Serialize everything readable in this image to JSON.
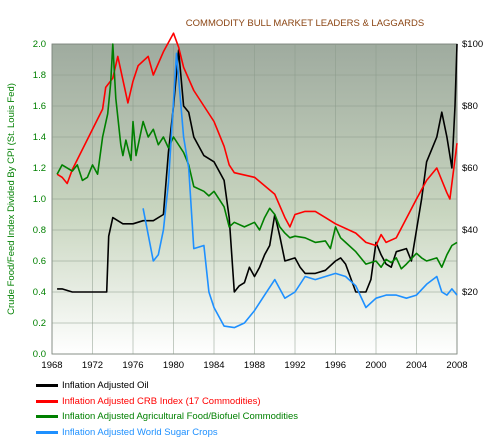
{
  "chart_data": {
    "type": "line",
    "title": "COMMODITY BULL MARKET LEADERS & LAGGARDS",
    "ylabel": "Crude Food/Feed Index Divided By CPI (St. Louis Fed)",
    "xlabel": "",
    "xlim": [
      1968,
      2008
    ],
    "ylim": [
      0.0,
      2.0
    ],
    "y2lim": [
      0,
      100
    ],
    "x_ticks": [
      "1968",
      "1972",
      "1976",
      "1980",
      "1984",
      "1988",
      "1992",
      "1996",
      "2000",
      "2004",
      "2008"
    ],
    "y_ticks": [
      "0.0",
      "0.2",
      "0.4",
      "0.6",
      "0.8",
      "1.0",
      "1.2",
      "1.4",
      "1.6",
      "1.8",
      "2.0"
    ],
    "y2_ticks": [
      "$20",
      "$40",
      "$60",
      "$80",
      "$100"
    ],
    "grid": true,
    "legend_position": "bottom",
    "series": [
      {
        "name": "Inflation Adjusted Oil",
        "color": "#000000",
        "axis": "right",
        "points": [
          [
            1968.5,
            21
          ],
          [
            1969,
            21
          ],
          [
            1970,
            20
          ],
          [
            1971,
            20
          ],
          [
            1972,
            20
          ],
          [
            1973,
            20
          ],
          [
            1973.4,
            20
          ],
          [
            1973.6,
            38
          ],
          [
            1974,
            44
          ],
          [
            1975,
            42
          ],
          [
            1976,
            42
          ],
          [
            1977,
            43
          ],
          [
            1978,
            43
          ],
          [
            1979,
            45
          ],
          [
            1979.5,
            65
          ],
          [
            1980,
            80
          ],
          [
            1980.5,
            98
          ],
          [
            1981,
            80
          ],
          [
            1981.5,
            78
          ],
          [
            1982,
            70
          ],
          [
            1983,
            64
          ],
          [
            1984,
            62
          ],
          [
            1985,
            56
          ],
          [
            1985.5,
            44
          ],
          [
            1986,
            20
          ],
          [
            1986.5,
            22
          ],
          [
            1987,
            23
          ],
          [
            1987.5,
            28
          ],
          [
            1988,
            25
          ],
          [
            1988.5,
            28
          ],
          [
            1989,
            32
          ],
          [
            1989.5,
            35
          ],
          [
            1990,
            45
          ],
          [
            1990.5,
            38
          ],
          [
            1991,
            30
          ],
          [
            1992,
            31
          ],
          [
            1992.5,
            28
          ],
          [
            1993,
            26
          ],
          [
            1994,
            26
          ],
          [
            1995,
            27
          ],
          [
            1996,
            30
          ],
          [
            1996.5,
            31
          ],
          [
            1997,
            29
          ],
          [
            1998,
            20
          ],
          [
            1999,
            20
          ],
          [
            1999.5,
            24
          ],
          [
            2000,
            36
          ],
          [
            2000.5,
            32
          ],
          [
            2001,
            29
          ],
          [
            2001.5,
            28
          ],
          [
            2002,
            33
          ],
          [
            2003,
            34
          ],
          [
            2003.5,
            30
          ],
          [
            2004,
            40
          ],
          [
            2004.5,
            50
          ],
          [
            2005,
            62
          ],
          [
            2005.5,
            66
          ],
          [
            2006,
            70
          ],
          [
            2006.5,
            78
          ],
          [
            2007,
            70
          ],
          [
            2007.5,
            60
          ],
          [
            2007.8,
            80
          ],
          [
            2008,
            100
          ]
        ]
      },
      {
        "name": "Inflation Adjusted CRB Index (17 Commodities)",
        "color": "#ff0000",
        "axis": "left",
        "points": [
          [
            1968.5,
            1.16
          ],
          [
            1969,
            1.14
          ],
          [
            1969.5,
            1.1
          ],
          [
            1970,
            1.19
          ],
          [
            1973,
            1.58
          ],
          [
            1973.3,
            1.72
          ],
          [
            1974,
            1.78
          ],
          [
            1974.5,
            1.92
          ],
          [
            1975.5,
            1.62
          ],
          [
            1976,
            1.76
          ],
          [
            1976.5,
            1.86
          ],
          [
            1977.5,
            1.92
          ],
          [
            1978,
            1.8
          ],
          [
            1979,
            1.95
          ],
          [
            1980,
            2.07
          ],
          [
            1980.5,
            1.98
          ],
          [
            1981,
            1.85
          ],
          [
            1982,
            1.7
          ],
          [
            1983,
            1.6
          ],
          [
            1984,
            1.5
          ],
          [
            1985,
            1.34
          ],
          [
            1985.5,
            1.22
          ],
          [
            1986,
            1.17
          ],
          [
            1988,
            1.14
          ],
          [
            1990,
            1.03
          ],
          [
            1991,
            0.88
          ],
          [
            1991.5,
            0.82
          ],
          [
            1992,
            0.9
          ],
          [
            1993,
            0.92
          ],
          [
            1994,
            0.92
          ],
          [
            1995,
            0.88
          ],
          [
            1996,
            0.84
          ],
          [
            1998,
            0.78
          ],
          [
            1999,
            0.72
          ],
          [
            2000,
            0.7
          ],
          [
            2000.5,
            0.77
          ],
          [
            2001,
            0.72
          ],
          [
            2002,
            0.75
          ],
          [
            2004,
            1.0
          ],
          [
            2005,
            1.12
          ],
          [
            2006,
            1.2
          ],
          [
            2007,
            1.04
          ],
          [
            2007.3,
            1.0
          ],
          [
            2008,
            1.36
          ]
        ]
      },
      {
        "name": "Inflation Adjusted Agricultural Food/Biofuel Commodities",
        "color": "#008000",
        "axis": "left",
        "points": [
          [
            1968.5,
            1.16
          ],
          [
            1969,
            1.22
          ],
          [
            1970,
            1.18
          ],
          [
            1970.5,
            1.22
          ],
          [
            1971,
            1.12
          ],
          [
            1971.5,
            1.14
          ],
          [
            1972,
            1.22
          ],
          [
            1972.5,
            1.16
          ],
          [
            1973,
            1.4
          ],
          [
            1973.5,
            1.55
          ],
          [
            1973.8,
            1.75
          ],
          [
            1974,
            2.0
          ],
          [
            1974.3,
            1.65
          ],
          [
            1974.8,
            1.35
          ],
          [
            1975,
            1.28
          ],
          [
            1975.3,
            1.38
          ],
          [
            1975.8,
            1.25
          ],
          [
            1976,
            1.5
          ],
          [
            1976.3,
            1.28
          ],
          [
            1977,
            1.5
          ],
          [
            1977.5,
            1.4
          ],
          [
            1978,
            1.45
          ],
          [
            1978.5,
            1.35
          ],
          [
            1979,
            1.4
          ],
          [
            1979.5,
            1.33
          ],
          [
            1980,
            1.4
          ],
          [
            1981,
            1.3
          ],
          [
            1981.5,
            1.22
          ],
          [
            1982,
            1.08
          ],
          [
            1983,
            1.05
          ],
          [
            1983.5,
            1.02
          ],
          [
            1984,
            1.05
          ],
          [
            1985,
            0.95
          ],
          [
            1985.5,
            0.82
          ],
          [
            1986,
            0.85
          ],
          [
            1987,
            0.82
          ],
          [
            1988,
            0.85
          ],
          [
            1988.5,
            0.8
          ],
          [
            1989,
            0.88
          ],
          [
            1989.5,
            0.94
          ],
          [
            1990,
            0.9
          ],
          [
            1990.5,
            0.82
          ],
          [
            1991,
            0.78
          ],
          [
            1991.5,
            0.75
          ],
          [
            1992,
            0.76
          ],
          [
            1993,
            0.75
          ],
          [
            1994,
            0.72
          ],
          [
            1995,
            0.73
          ],
          [
            1995.5,
            0.68
          ],
          [
            1996,
            0.82
          ],
          [
            1996.5,
            0.75
          ],
          [
            1997,
            0.72
          ],
          [
            1998,
            0.66
          ],
          [
            1998.5,
            0.62
          ],
          [
            1999,
            0.58
          ],
          [
            2000,
            0.6
          ],
          [
            2000.5,
            0.56
          ],
          [
            2001,
            0.61
          ],
          [
            2001.5,
            0.59
          ],
          [
            2002,
            0.62
          ],
          [
            2002.5,
            0.55
          ],
          [
            2003,
            0.58
          ],
          [
            2004,
            0.65
          ],
          [
            2004.5,
            0.62
          ],
          [
            2005,
            0.6
          ],
          [
            2006,
            0.62
          ],
          [
            2006.5,
            0.56
          ],
          [
            2007,
            0.64
          ],
          [
            2007.5,
            0.7
          ],
          [
            2008,
            0.72
          ]
        ]
      },
      {
        "name": "Inflation Adjusted World Sugar Crops",
        "color": "#1e90ff",
        "axis": "left",
        "points": [
          [
            1977,
            0.94
          ],
          [
            1978,
            0.6
          ],
          [
            1978.5,
            0.64
          ],
          [
            1979,
            0.8
          ],
          [
            1979.5,
            1.1
          ],
          [
            1980.3,
            1.94
          ],
          [
            1980.5,
            1.78
          ],
          [
            1981,
            1.4
          ],
          [
            1981.5,
            1.2
          ],
          [
            1982,
            0.68
          ],
          [
            1983,
            0.7
          ],
          [
            1983.5,
            0.4
          ],
          [
            1984,
            0.3
          ],
          [
            1985,
            0.18
          ],
          [
            1986,
            0.17
          ],
          [
            1987,
            0.2
          ],
          [
            1988,
            0.28
          ],
          [
            1989,
            0.38
          ],
          [
            1990,
            0.48
          ],
          [
            1991,
            0.36
          ],
          [
            1992,
            0.4
          ],
          [
            1993,
            0.5
          ],
          [
            1994,
            0.48
          ],
          [
            1995,
            0.5
          ],
          [
            1996,
            0.52
          ],
          [
            1997,
            0.5
          ],
          [
            1998,
            0.44
          ],
          [
            1999,
            0.3
          ],
          [
            2000,
            0.36
          ],
          [
            2001,
            0.38
          ],
          [
            2002,
            0.38
          ],
          [
            2003,
            0.36
          ],
          [
            2004,
            0.38
          ],
          [
            2005,
            0.45
          ],
          [
            2006,
            0.5
          ],
          [
            2006.5,
            0.4
          ],
          [
            2007,
            0.38
          ],
          [
            2007.5,
            0.42
          ],
          [
            2008,
            0.38
          ]
        ]
      }
    ]
  }
}
